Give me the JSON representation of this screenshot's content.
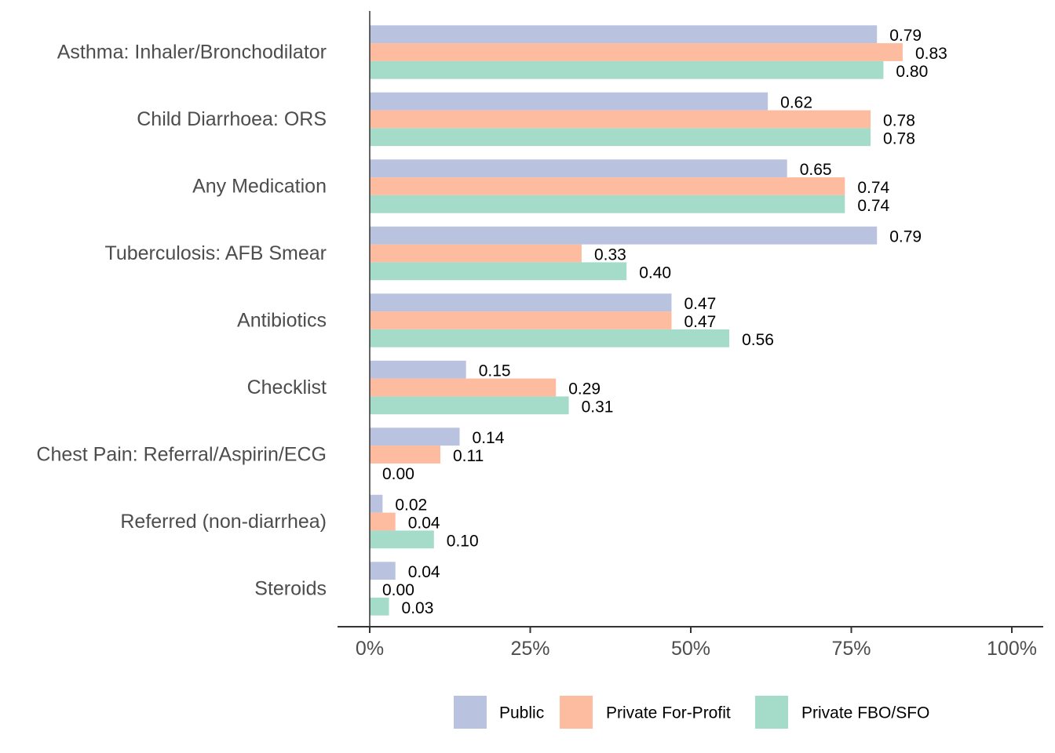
{
  "chart_data": {
    "type": "bar",
    "orientation": "horizontal",
    "title": "",
    "xlabel": "",
    "ylabel": "",
    "categories": [
      "Asthma: Inhaler/Bronchodilator",
      "Child Diarrhoea: ORS",
      "Any Medication",
      "Tuberculosis: AFB Smear",
      "Antibiotics",
      "Checklist",
      "Chest Pain: Referral/Aspirin/ECG",
      "Referred (non-diarrhea)",
      "Steroids"
    ],
    "series": [
      {
        "name": "Public",
        "color": "#b9c3e0",
        "values": [
          0.79,
          0.62,
          0.65,
          0.79,
          0.47,
          0.15,
          0.14,
          0.02,
          0.04
        ]
      },
      {
        "name": "Private For-Profit",
        "color": "#fdbba0",
        "values": [
          0.83,
          0.78,
          0.74,
          0.33,
          0.47,
          0.29,
          0.11,
          0.04,
          0.0
        ]
      },
      {
        "name": "Private FBO/SFO",
        "color": "#a5dbc9",
        "values": [
          0.8,
          0.78,
          0.74,
          0.4,
          0.56,
          0.31,
          0.0,
          0.1,
          0.03
        ]
      }
    ],
    "value_labels": [
      [
        "0.79",
        "0.62",
        "0.65",
        "0.79",
        "0.47",
        "0.15",
        "0.14",
        "0.02",
        "0.04"
      ],
      [
        "0.83",
        "0.78",
        "0.74",
        "0.33",
        "0.47",
        "0.29",
        "0.11",
        "0.04",
        "0.00"
      ],
      [
        "0.80",
        "0.78",
        "0.74",
        "0.40",
        "0.56",
        "0.31",
        "0.00",
        "0.10",
        "0.03"
      ]
    ],
    "xlim": [
      0,
      1
    ],
    "x_ticks": [
      0,
      0.25,
      0.5,
      0.75,
      1.0
    ],
    "x_tick_labels": [
      "0%",
      "25%",
      "50%",
      "75%",
      "100%"
    ],
    "grid": false,
    "legend_position": "bottom"
  }
}
